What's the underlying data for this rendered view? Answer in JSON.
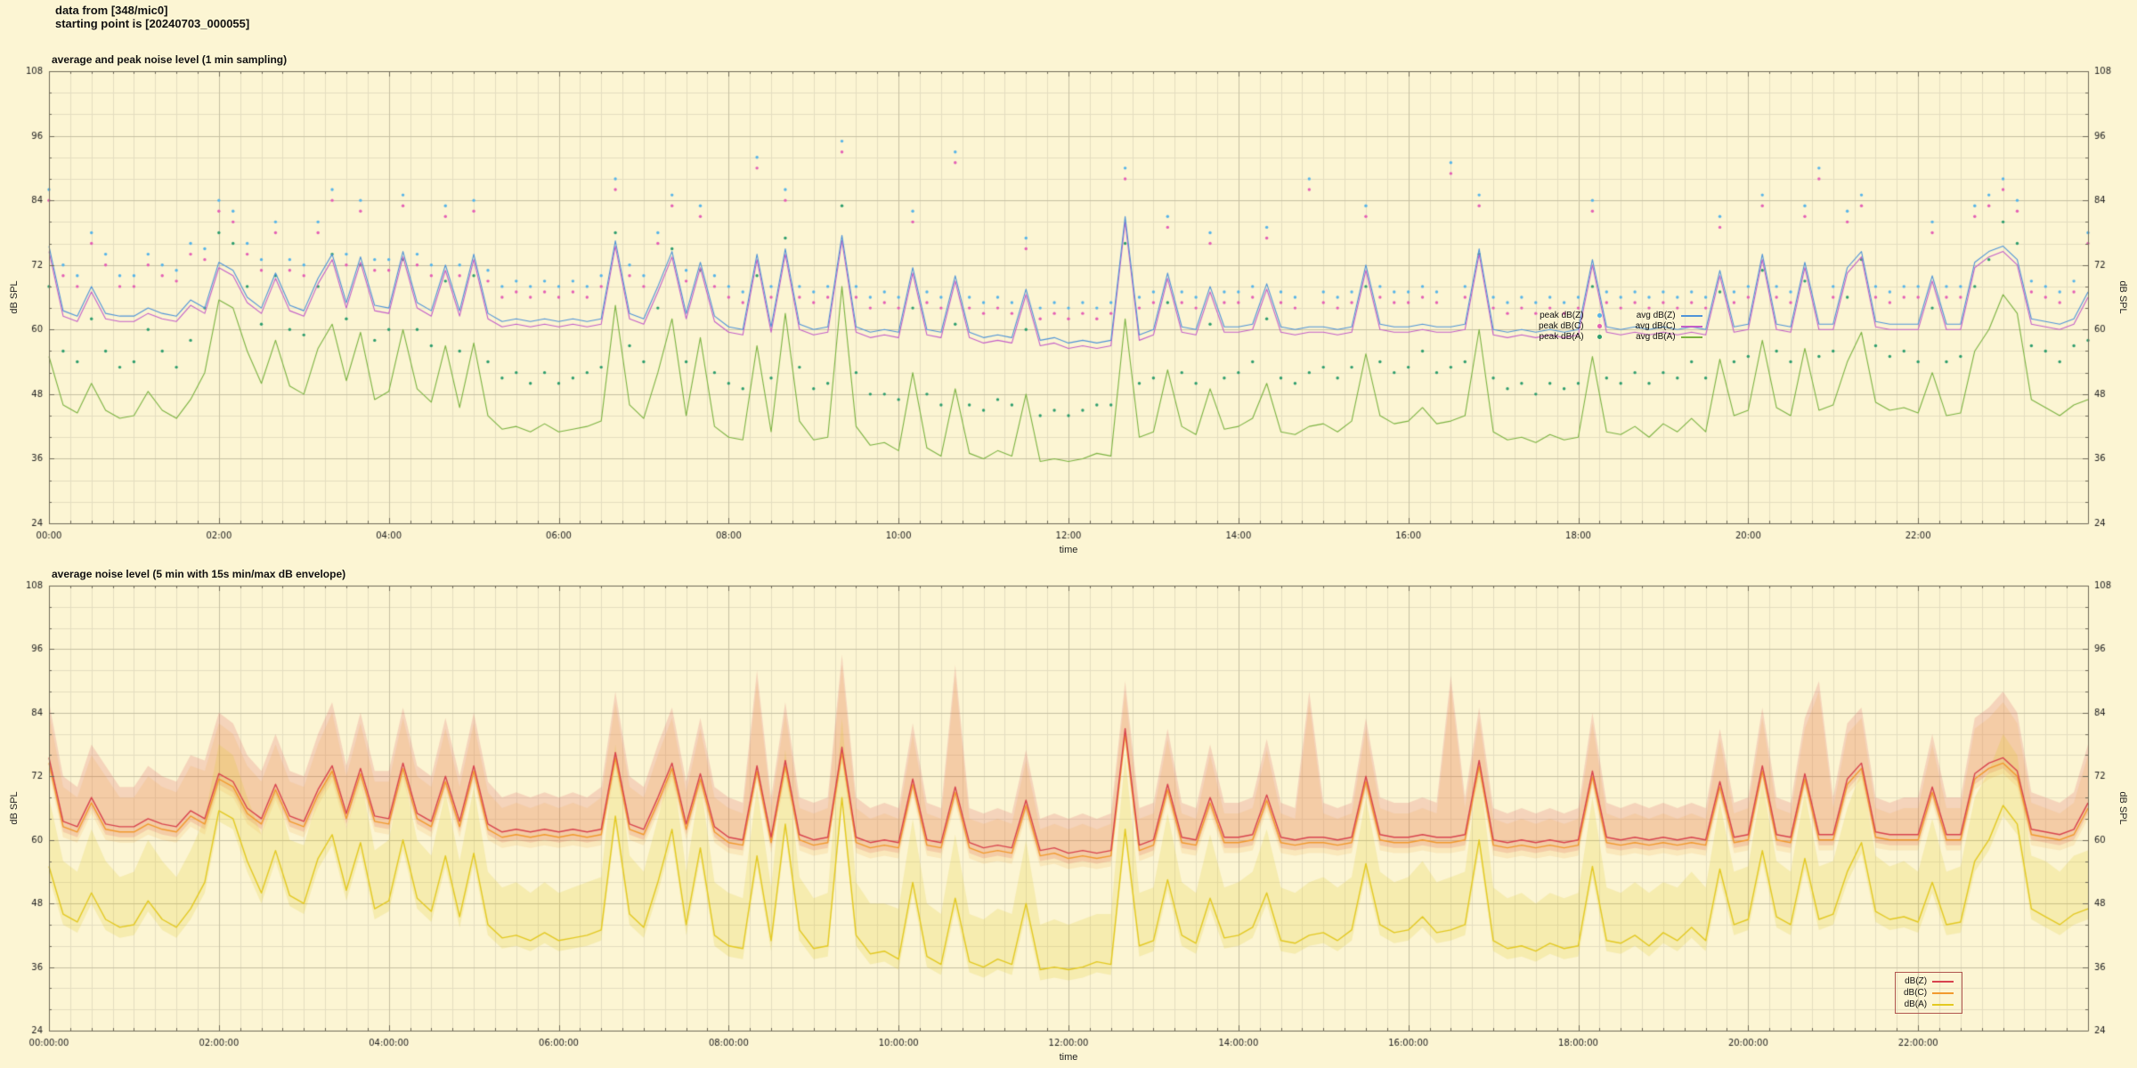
{
  "header": {
    "line1": "data from [348/mic0]",
    "line2": "starting point is [20240703_000055]"
  },
  "colors": {
    "background": "#fcf5d3",
    "grid_minor": "#e4dec0",
    "grid_major": "#c6c0a2",
    "border": "#6f6a58",
    "text": "#222222",
    "legend_box_border": "#b0564e"
  },
  "chart_data": {
    "sample_step_min": 10,
    "samples": {
      "z_avg": [
        75.5,
        63.5,
        62.5,
        68,
        63,
        62.5,
        62.5,
        64,
        63,
        62.5,
        65.5,
        64,
        72.5,
        71,
        66,
        64,
        70.5,
        64.5,
        63.5,
        69.5,
        74,
        65,
        73.5,
        64.5,
        64,
        74.5,
        65,
        63.5,
        72,
        63.5,
        74,
        63,
        61.5,
        62,
        61.5,
        62,
        61.5,
        62,
        61.5,
        62,
        76.5,
        63,
        62,
        68,
        74.5,
        63,
        72.5,
        62.5,
        60.5,
        60,
        74,
        60.5,
        75,
        61,
        60,
        60.5,
        77.5,
        60.5,
        59.5,
        60,
        59.5,
        71.5,
        60,
        59.5,
        70,
        59.5,
        58.5,
        59,
        58.5,
        67.5,
        58,
        58.5,
        57.5,
        58,
        57.5,
        58,
        81,
        59,
        60,
        70.5,
        60.5,
        60,
        68,
        60.5,
        60.5,
        61,
        68.5,
        60.5,
        60,
        60.5,
        60.5,
        60,
        60.5,
        72,
        61,
        60.5,
        60.5,
        61,
        60.5,
        60.5,
        61,
        75,
        60,
        59.5,
        60,
        59.5,
        60,
        59.5,
        60,
        73,
        60.5,
        60,
        60.5,
        60,
        60.5,
        60,
        60.5,
        60,
        71,
        60.5,
        61,
        74,
        61,
        60.5,
        72.5,
        61,
        61,
        71.5,
        74.5,
        61.5,
        61,
        61,
        61,
        70,
        61,
        61,
        72.5,
        74.5,
        75.5,
        73,
        62,
        61.5,
        61,
        62,
        67
      ],
      "c_avg": [
        74.5,
        62.5,
        61.5,
        67,
        62,
        61.5,
        61.5,
        63,
        62,
        61.5,
        64.5,
        63,
        71.5,
        70,
        65,
        63,
        69.5,
        63.5,
        62.5,
        68.5,
        73,
        64,
        72.5,
        63.5,
        63,
        73.5,
        64,
        62.5,
        71,
        62.5,
        73,
        62,
        60.5,
        61,
        60.5,
        61,
        60.5,
        61,
        60.5,
        61,
        75.5,
        62,
        61,
        67,
        73.5,
        62,
        71.5,
        61.5,
        59.5,
        59,
        73,
        59.5,
        74,
        60,
        59,
        59.5,
        76.5,
        59.5,
        58.5,
        59,
        58.5,
        70.5,
        59,
        58.5,
        69,
        58.5,
        57.5,
        58,
        57.5,
        66.5,
        57,
        57.5,
        56.5,
        57,
        56.5,
        57,
        80,
        58,
        59,
        69.5,
        59.5,
        59,
        67,
        59.5,
        59.5,
        60,
        67.5,
        59.5,
        59,
        59.5,
        59.5,
        59,
        59.5,
        71,
        60,
        59.5,
        59.5,
        60,
        59.5,
        59.5,
        60,
        74,
        59,
        58.5,
        59,
        58.5,
        59,
        58.5,
        59,
        72,
        59.5,
        59,
        59.5,
        59,
        59.5,
        59,
        59.5,
        59,
        70,
        59.5,
        60,
        73,
        60,
        59.5,
        71.5,
        60,
        60,
        70.5,
        73.5,
        60.5,
        60,
        60,
        60,
        69,
        60,
        60,
        71.5,
        73.5,
        74.5,
        72,
        61,
        60.5,
        60,
        61,
        66
      ],
      "a_avg": [
        55,
        46,
        44.5,
        50,
        45,
        43.5,
        44,
        48.5,
        45,
        43.5,
        47,
        52,
        65.5,
        64,
        56,
        50,
        58,
        49.5,
        48,
        56.5,
        61,
        50.5,
        59.5,
        47,
        48.5,
        60,
        49,
        46.5,
        57,
        45.5,
        57.5,
        44,
        41.5,
        42,
        41,
        42.5,
        41,
        41.5,
        42,
        43,
        64.5,
        46,
        43.5,
        52,
        62,
        44,
        58.5,
        42,
        40,
        39.5,
        57,
        41,
        63,
        43,
        39.5,
        40,
        68,
        42,
        38.5,
        39,
        37.5,
        52,
        38,
        36.5,
        49,
        37,
        36,
        37.5,
        36.5,
        48,
        35.5,
        36,
        35.5,
        36,
        37,
        36.5,
        62,
        40,
        41,
        52.5,
        42,
        40.5,
        49,
        41.5,
        42,
        43.5,
        50,
        41,
        40.5,
        42,
        42.5,
        41,
        43,
        55.5,
        44,
        42.5,
        43,
        45.5,
        42.5,
        43,
        44,
        60,
        41,
        39.5,
        40,
        39,
        40.5,
        39.5,
        40,
        55,
        41,
        40.5,
        42,
        40,
        42.5,
        41,
        43.5,
        41,
        54.5,
        44,
        45,
        58,
        45.5,
        44,
        56.5,
        45,
        46,
        54,
        59.5,
        46.5,
        45,
        45.5,
        44.5,
        52,
        44,
        44.5,
        56,
        60,
        66.5,
        63,
        47,
        45.5,
        44,
        46,
        47
      ],
      "z_peak": [
        86,
        72,
        70,
        78,
        74,
        70,
        70,
        74,
        72,
        71,
        76,
        75,
        84,
        82,
        76,
        73,
        80,
        73,
        72,
        80,
        86,
        74,
        84,
        73,
        73,
        85,
        74,
        72,
        83,
        72,
        84,
        71,
        68,
        69,
        68,
        69,
        68,
        69,
        68,
        70,
        88,
        72,
        70,
        78,
        85,
        71,
        83,
        70,
        68,
        67,
        92,
        68,
        86,
        68,
        67,
        68,
        95,
        68,
        66,
        67,
        66,
        82,
        67,
        66,
        93,
        66,
        65,
        66,
        65,
        77,
        64,
        65,
        64,
        65,
        64,
        65,
        90,
        66,
        67,
        81,
        67,
        66,
        78,
        67,
        67,
        68,
        79,
        67,
        66,
        88,
        67,
        66,
        67,
        83,
        68,
        67,
        67,
        68,
        67,
        91,
        68,
        85,
        66,
        65,
        66,
        65,
        66,
        65,
        66,
        84,
        67,
        66,
        67,
        66,
        67,
        66,
        67,
        66,
        81,
        67,
        68,
        85,
        68,
        67,
        83,
        90,
        68,
        82,
        85,
        68,
        67,
        68,
        68,
        80,
        68,
        68,
        83,
        85,
        88,
        84,
        69,
        68,
        67,
        69,
        78
      ],
      "c_peak": [
        84,
        70,
        68,
        76,
        72,
        68,
        68,
        72,
        70,
        69,
        74,
        73,
        82,
        80,
        74,
        71,
        78,
        71,
        70,
        78,
        84,
        72,
        82,
        71,
        71,
        83,
        72,
        70,
        81,
        70,
        82,
        69,
        66,
        67,
        66,
        67,
        66,
        67,
        66,
        68,
        86,
        70,
        68,
        76,
        83,
        69,
        81,
        68,
        66,
        65,
        90,
        66,
        84,
        66,
        65,
        66,
        93,
        66,
        64,
        65,
        64,
        80,
        65,
        64,
        91,
        64,
        63,
        64,
        63,
        75,
        62,
        63,
        62,
        63,
        62,
        63,
        88,
        64,
        65,
        79,
        65,
        64,
        76,
        65,
        65,
        66,
        77,
        65,
        64,
        86,
        65,
        64,
        65,
        81,
        66,
        65,
        65,
        66,
        65,
        89,
        66,
        83,
        64,
        63,
        64,
        63,
        64,
        63,
        64,
        82,
        65,
        64,
        65,
        64,
        65,
        64,
        65,
        64,
        79,
        65,
        66,
        83,
        66,
        65,
        81,
        88,
        66,
        80,
        83,
        66,
        65,
        66,
        66,
        78,
        66,
        66,
        81,
        83,
        86,
        82,
        67,
        66,
        65,
        67,
        76
      ],
      "a_peak": [
        68,
        56,
        54,
        62,
        56,
        53,
        54,
        60,
        56,
        53,
        58,
        64,
        78,
        76,
        68,
        61,
        70,
        60,
        59,
        68,
        74,
        62,
        72,
        58,
        60,
        73,
        60,
        57,
        69,
        56,
        70,
        54,
        51,
        52,
        50,
        52,
        50,
        51,
        52,
        53,
        78,
        57,
        54,
        64,
        75,
        54,
        71,
        52,
        50,
        49,
        70,
        51,
        77,
        53,
        49,
        50,
        83,
        52,
        48,
        48,
        47,
        64,
        48,
        46,
        61,
        46,
        45,
        47,
        46,
        60,
        44,
        45,
        44,
        45,
        46,
        46,
        76,
        50,
        51,
        65,
        52,
        50,
        61,
        51,
        52,
        54,
        62,
        51,
        50,
        52,
        53,
        51,
        53,
        68,
        54,
        52,
        53,
        56,
        52,
        53,
        54,
        74,
        51,
        49,
        50,
        48,
        50,
        49,
        50,
        68,
        51,
        50,
        52,
        50,
        52,
        51,
        54,
        51,
        67,
        54,
        55,
        71,
        56,
        54,
        69,
        55,
        56,
        66,
        73,
        57,
        55,
        56,
        54,
        64,
        54,
        55,
        68,
        73,
        80,
        76,
        57,
        56,
        54,
        57,
        58
      ]
    },
    "charts": [
      {
        "type": "scatter+line",
        "title": "average and peak noise level (1 min sampling)",
        "xlabel": "time",
        "ylabel": "dB SPL",
        "ylim": [
          24,
          108
        ],
        "yticks": [
          24,
          36,
          48,
          60,
          72,
          84,
          96,
          108
        ],
        "y_minor_step": 4,
        "xlim_minutes": [
          0,
          1440
        ],
        "xtick_step_min": 120,
        "x_minor_step_min": 15,
        "xtick_labels": [
          "00:00",
          "02:00",
          "04:00",
          "06:00",
          "08:00",
          "10:00",
          "12:00",
          "14:00",
          "16:00",
          "18:00",
          "20:00",
          "22:00"
        ],
        "grid": true,
        "legend_position": "inside-right-middle",
        "series": [
          {
            "name": "peak dB(Z)",
            "type": "scatter",
            "color": "#56b4e9",
            "values_key": "z_peak"
          },
          {
            "name": "peak dB(C)",
            "type": "scatter",
            "color": "#e45fb5",
            "values_key": "c_peak"
          },
          {
            "name": "peak dB(A)",
            "type": "scatter",
            "color": "#2f9e6e",
            "values_key": "a_peak"
          },
          {
            "name": "avg dB(Z)",
            "type": "line",
            "color": "#4f94d8",
            "width": 1.1,
            "values_key": "z_avg"
          },
          {
            "name": "avg dB(C)",
            "type": "line",
            "color": "#c45fc8",
            "width": 1.1,
            "values_key": "c_avg"
          },
          {
            "name": "avg dB(A)",
            "type": "line",
            "color": "#7cb342",
            "width": 1.1,
            "values_key": "a_avg"
          }
        ]
      },
      {
        "type": "line+envelope",
        "title": "average noise level (5 min with 15s min/max dB envelope)",
        "xlabel": "time",
        "ylabel": "dB SPL",
        "ylim": [
          24,
          108
        ],
        "yticks": [
          24,
          36,
          48,
          60,
          72,
          84,
          96,
          108
        ],
        "y_minor_step": 4,
        "xlim_minutes": [
          0,
          1440
        ],
        "xtick_step_min": 120,
        "x_minor_step_min": 15,
        "xtick_labels": [
          "00:00:00",
          "02:00:00",
          "04:00:00",
          "06:00:00",
          "08:00:00",
          "10:00:00",
          "12:00:00",
          "14:00:00",
          "16:00:00",
          "18:00:00",
          "20:00:00",
          "22:00:00"
        ],
        "grid": true,
        "legend_position": "inside-bottom-right",
        "series": [
          {
            "name": "dB(Z)",
            "type": "line",
            "color": "#d8434e",
            "width": 1.4,
            "values_key": "z_avg",
            "band_max_key": "z_peak",
            "band_min_offset": -2,
            "band_color": "rgba(216,67,78,0.18)"
          },
          {
            "name": "dB(C)",
            "type": "line",
            "color": "#f29a2e",
            "width": 1.4,
            "values_key": "c_avg",
            "band_max_key": "c_peak",
            "band_min_offset": -2,
            "band_color": "rgba(242,154,46,0.14)"
          },
          {
            "name": "dB(A)",
            "type": "line",
            "color": "#e3c922",
            "width": 1.4,
            "values_key": "a_avg",
            "band_max_key": "a_peak",
            "band_min_offset": -2,
            "band_color": "rgba(227,201,34,0.20)"
          }
        ]
      }
    ]
  }
}
